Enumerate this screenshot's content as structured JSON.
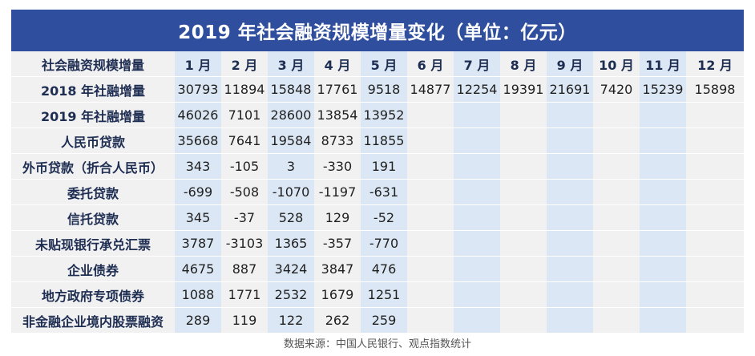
{
  "title": "2019 年社会融资规模增量变化（单位：亿元）",
  "header": {
    "label": "社会融资规模增量",
    "months": [
      "1 月",
      "2 月",
      "3 月",
      "4 月",
      "5 月",
      "6 月",
      "7 月",
      "8 月",
      "9 月",
      "10 月",
      "11 月",
      "12 月"
    ]
  },
  "rows": [
    {
      "label": "2018 年社融增量",
      "values": [
        "30793",
        "11894",
        "15848",
        "17761",
        "9518",
        "14877",
        "12254",
        "19391",
        "21691",
        "7420",
        "15239",
        "15898"
      ]
    },
    {
      "label": "2019 年社融增量",
      "values": [
        "46026",
        "7101",
        "28600",
        "13854",
        "13952",
        "",
        "",
        "",
        "",
        "",
        "",
        ""
      ]
    },
    {
      "label": "人民币贷款",
      "values": [
        "35668",
        "7641",
        "19584",
        "8733",
        "11855",
        "",
        "",
        "",
        "",
        "",
        "",
        ""
      ]
    },
    {
      "label": "外币贷款（折合人民币）",
      "values": [
        "343",
        "-105",
        "3",
        "-330",
        "191",
        "",
        "",
        "",
        "",
        "",
        "",
        ""
      ]
    },
    {
      "label": "委托贷款",
      "values": [
        "-699",
        "-508",
        "-1070",
        "-1197",
        "-631",
        "",
        "",
        "",
        "",
        "",
        "",
        ""
      ]
    },
    {
      "label": "信托贷款",
      "values": [
        "345",
        "-37",
        "528",
        "129",
        "-52",
        "",
        "",
        "",
        "",
        "",
        "",
        ""
      ]
    },
    {
      "label": "未贴现银行承兑汇票",
      "values": [
        "3787",
        "-3103",
        "1365",
        "-357",
        "-770",
        "",
        "",
        "",
        "",
        "",
        "",
        ""
      ]
    },
    {
      "label": "企业债券",
      "values": [
        "4675",
        "887",
        "3424",
        "3847",
        "476",
        "",
        "",
        "",
        "",
        "",
        "",
        ""
      ]
    },
    {
      "label": "地方政府专项债券",
      "values": [
        "1088",
        "1771",
        "2532",
        "1679",
        "1251",
        "",
        "",
        "",
        "",
        "",
        "",
        ""
      ]
    },
    {
      "label": "非金融企业境内股票融资",
      "values": [
        "289",
        "119",
        "122",
        "262",
        "259",
        "",
        "",
        "",
        "",
        "",
        "",
        ""
      ]
    }
  ],
  "source": "数据来源：中国人民银行、观点指数统计",
  "colors": {
    "title_bg": "#2f4f9e",
    "band_blue": "#dbe7f4",
    "band_gray": "#f1f1f1"
  }
}
